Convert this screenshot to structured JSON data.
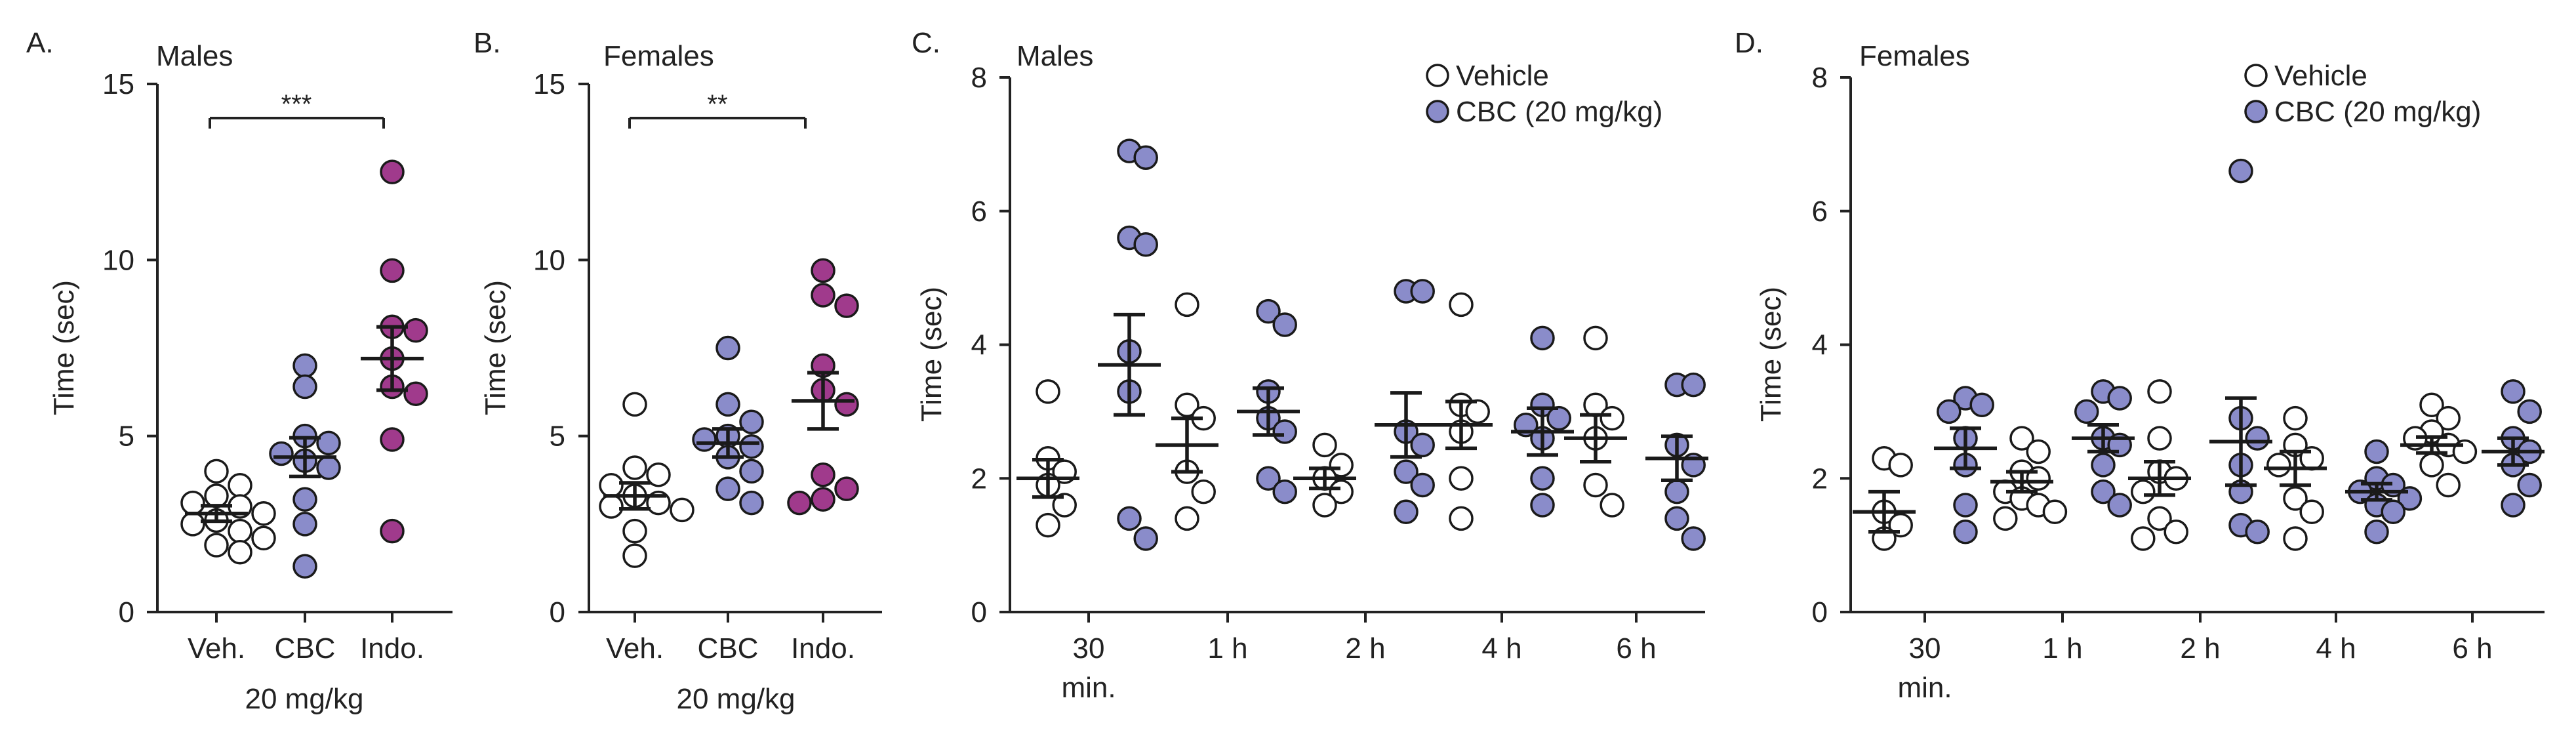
{
  "colors": {
    "vehicle": "#ffffff",
    "cbc": "#8a8cca",
    "indo": "#a03a8c",
    "ink": "#222222"
  },
  "chart_data": [
    {
      "id": "A",
      "type": "scatter",
      "letter": "A.",
      "title": "Males",
      "ylabel": "Time (sec)",
      "ylim": [
        0,
        15
      ],
      "yticks": [
        0,
        5,
        10,
        15
      ],
      "categories": [
        "Veh.",
        "CBC",
        "Indo."
      ],
      "xsublabel": "20 mg/kg",
      "significance": {
        "from": "Veh.",
        "to": "Indo.",
        "label": "***"
      },
      "series": [
        {
          "name": "Veh.",
          "color_key": "vehicle",
          "points": [
            4.0,
            3.6,
            3.3,
            3.1,
            3.0,
            2.8,
            2.6,
            2.5,
            2.3,
            2.1,
            1.9,
            1.7
          ],
          "mean": 2.8,
          "sem": 0.22
        },
        {
          "name": "CBC",
          "color_key": "cbc",
          "points": [
            7.0,
            6.4,
            5.0,
            4.8,
            4.5,
            4.3,
            4.1,
            3.2,
            2.5,
            1.3
          ],
          "mean": 4.4,
          "sem": 0.55
        },
        {
          "name": "Indo.",
          "color_key": "indo",
          "points": [
            12.5,
            9.7,
            8.1,
            8.0,
            7.2,
            6.4,
            6.2,
            4.9,
            2.3
          ],
          "mean": 7.2,
          "sem": 0.9
        }
      ]
    },
    {
      "id": "B",
      "type": "scatter",
      "letter": "B.",
      "title": "Females",
      "ylabel": "Time (sec)",
      "ylim": [
        0,
        15
      ],
      "yticks": [
        0,
        5,
        10,
        15
      ],
      "categories": [
        "Veh.",
        "CBC",
        "Indo."
      ],
      "xsublabel": "20 mg/kg",
      "significance": {
        "from": "Veh.",
        "to": "Indo.",
        "label": "**"
      },
      "series": [
        {
          "name": "Veh.",
          "color_key": "vehicle",
          "points": [
            5.9,
            4.1,
            3.9,
            3.6,
            3.3,
            3.1,
            3.0,
            2.9,
            2.3,
            1.6
          ],
          "mean": 3.3,
          "sem": 0.37
        },
        {
          "name": "CBC",
          "color_key": "cbc",
          "points": [
            7.5,
            5.9,
            5.4,
            5.0,
            4.9,
            4.7,
            4.4,
            4.0,
            3.5,
            3.1
          ],
          "mean": 4.8,
          "sem": 0.4
        },
        {
          "name": "Indo.",
          "color_key": "indo",
          "points": [
            9.7,
            9.0,
            8.7,
            7.0,
            6.3,
            5.9,
            3.9,
            3.5,
            3.2,
            3.1
          ],
          "mean": 6.0,
          "sem": 0.8
        }
      ]
    },
    {
      "id": "C",
      "type": "scatter",
      "letter": "C.",
      "title": "Males",
      "ylabel": "Time (sec)",
      "ylim": [
        0,
        8
      ],
      "yticks": [
        0,
        2,
        4,
        6,
        8
      ],
      "categories": [
        "30",
        "1 h",
        "2 h",
        "4 h",
        "6 h"
      ],
      "category_sublabels": [
        "min.",
        "",
        "",
        "",
        ""
      ],
      "legend": {
        "position": "top-right",
        "entries": [
          {
            "label": "Vehicle",
            "color_key": "vehicle"
          },
          {
            "label": "CBC (20 mg/kg)",
            "color_key": "cbc"
          }
        ]
      },
      "series": [
        {
          "name": "Vehicle",
          "color_key": "vehicle",
          "groups": [
            {
              "points": [
                3.3,
                2.3,
                2.1,
                1.9,
                1.6,
                1.3
              ],
              "mean": 2.0,
              "sem": 0.28
            },
            {
              "points": [
                4.6,
                3.1,
                2.9,
                2.1,
                1.8,
                1.4
              ],
              "mean": 2.5,
              "sem": 0.4
            },
            {
              "points": [
                2.5,
                2.2,
                2.0,
                1.8,
                1.6
              ],
              "mean": 2.0,
              "sem": 0.15
            },
            {
              "points": [
                4.6,
                3.1,
                3.0,
                2.7,
                2.0,
                1.4
              ],
              "mean": 2.8,
              "sem": 0.35
            },
            {
              "points": [
                4.1,
                3.1,
                2.9,
                2.6,
                1.9,
                1.6
              ],
              "mean": 2.6,
              "sem": 0.35
            }
          ]
        },
        {
          "name": "CBC (20 mg/kg)",
          "color_key": "cbc",
          "groups": [
            {
              "points": [
                6.9,
                6.8,
                5.6,
                5.5,
                3.9,
                3.3,
                1.4,
                1.1
              ],
              "mean": 3.7,
              "sem": 0.75
            },
            {
              "points": [
                4.5,
                4.3,
                3.3,
                2.9,
                2.7,
                2.0,
                1.8
              ],
              "mean": 3.0,
              "sem": 0.35
            },
            {
              "points": [
                4.8,
                4.8,
                2.7,
                2.5,
                2.1,
                1.9,
                1.5
              ],
              "mean": 2.8,
              "sem": 0.48
            },
            {
              "points": [
                4.1,
                3.1,
                2.9,
                2.8,
                2.6,
                2.0,
                1.6
              ],
              "mean": 2.7,
              "sem": 0.35
            },
            {
              "points": [
                3.4,
                3.4,
                2.5,
                2.2,
                1.8,
                1.4,
                1.1
              ],
              "mean": 2.3,
              "sem": 0.33
            }
          ]
        }
      ]
    },
    {
      "id": "D",
      "type": "scatter",
      "letter": "D.",
      "title": "Females",
      "ylabel": "Time (sec)",
      "ylim": [
        0,
        8
      ],
      "yticks": [
        0,
        2,
        4,
        6,
        8
      ],
      "categories": [
        "30",
        "1 h",
        "2 h",
        "4 h",
        "6 h"
      ],
      "category_sublabels": [
        "min.",
        "",
        "",
        "",
        ""
      ],
      "legend": {
        "position": "top-right",
        "entries": [
          {
            "label": "Vehicle",
            "color_key": "vehicle"
          },
          {
            "label": "CBC (20 mg/kg)",
            "color_key": "cbc"
          }
        ]
      },
      "series": [
        {
          "name": "Vehicle",
          "color_key": "vehicle",
          "groups": [
            {
              "points": [
                2.3,
                2.2,
                1.5,
                1.3,
                1.1
              ],
              "mean": 1.5,
              "sem": 0.3
            },
            {
              "points": [
                2.6,
                2.4,
                2.1,
                2.0,
                1.8,
                1.7,
                1.6,
                1.5,
                1.4
              ],
              "mean": 1.95,
              "sem": 0.15
            },
            {
              "points": [
                3.3,
                2.6,
                2.1,
                2.0,
                1.8,
                1.4,
                1.2,
                1.1
              ],
              "mean": 2.0,
              "sem": 0.25
            },
            {
              "points": [
                2.9,
                2.5,
                2.3,
                2.2,
                1.7,
                1.5,
                1.1
              ],
              "mean": 2.15,
              "sem": 0.25
            },
            {
              "points": [
                3.1,
                2.9,
                2.7,
                2.6,
                2.5,
                2.4,
                2.2,
                1.9
              ],
              "mean": 2.5,
              "sem": 0.12
            }
          ]
        },
        {
          "name": "CBC (20 mg/kg)",
          "color_key": "cbc",
          "groups": [
            {
              "points": [
                3.2,
                3.1,
                3.0,
                2.6,
                2.2,
                1.6,
                1.2
              ],
              "mean": 2.45,
              "sem": 0.3
            },
            {
              "points": [
                3.3,
                3.2,
                3.0,
                2.6,
                2.5,
                2.2,
                1.8,
                1.6
              ],
              "mean": 2.6,
              "sem": 0.2
            },
            {
              "points": [
                6.6,
                2.9,
                2.6,
                2.2,
                1.8,
                1.3,
                1.2
              ],
              "mean": 2.55,
              "sem": 0.65
            },
            {
              "points": [
                2.4,
                2.0,
                1.9,
                1.8,
                1.7,
                1.6,
                1.5,
                1.2
              ],
              "mean": 1.8,
              "sem": 0.12
            },
            {
              "points": [
                3.3,
                3.0,
                2.6,
                2.4,
                2.2,
                1.9,
                1.6
              ],
              "mean": 2.4,
              "sem": 0.2
            }
          ]
        }
      ]
    }
  ]
}
